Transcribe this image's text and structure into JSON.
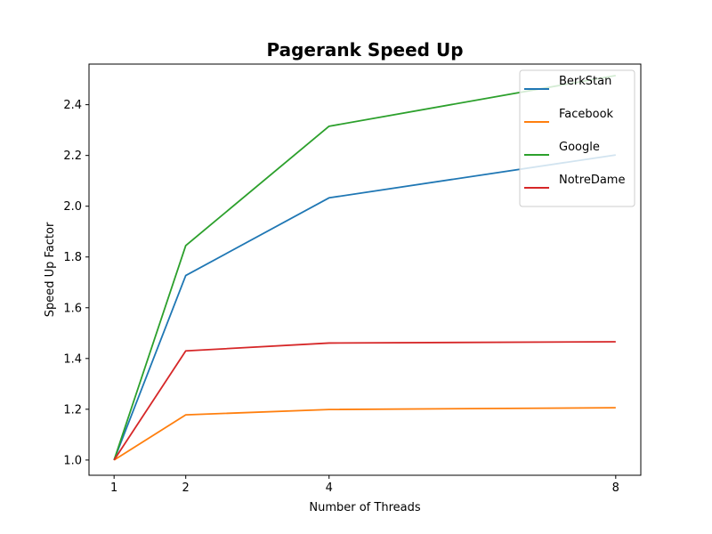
{
  "chart_data": {
    "type": "line",
    "title": "Pagerank Speed Up",
    "xlabel": "Number of Threads",
    "ylabel": "Speed Up Factor",
    "x": [
      1,
      2,
      4,
      8
    ],
    "xticks": [
      "1",
      "2",
      "4",
      "8"
    ],
    "yticks": [
      "1.0",
      "1.2",
      "1.4",
      "1.6",
      "1.8",
      "2.0",
      "2.2",
      "2.4"
    ],
    "xlim": [
      0.65,
      8.35
    ],
    "ylim": [
      0.94,
      2.56
    ],
    "grid": false,
    "legend_position": "top-right",
    "series": [
      {
        "name": "BerkStan",
        "color": "#1f77b4",
        "values": [
          1.0,
          1.727,
          2.033,
          2.202
        ]
      },
      {
        "name": "Facebook",
        "color": "#ff7f0e",
        "values": [
          1.0,
          1.178,
          1.199,
          1.206
        ]
      },
      {
        "name": "Google",
        "color": "#2ca02c",
        "values": [
          1.0,
          1.845,
          2.315,
          2.515
        ]
      },
      {
        "name": "NotreDame",
        "color": "#d62728",
        "values": [
          1.0,
          1.43,
          1.461,
          1.466
        ]
      }
    ]
  }
}
